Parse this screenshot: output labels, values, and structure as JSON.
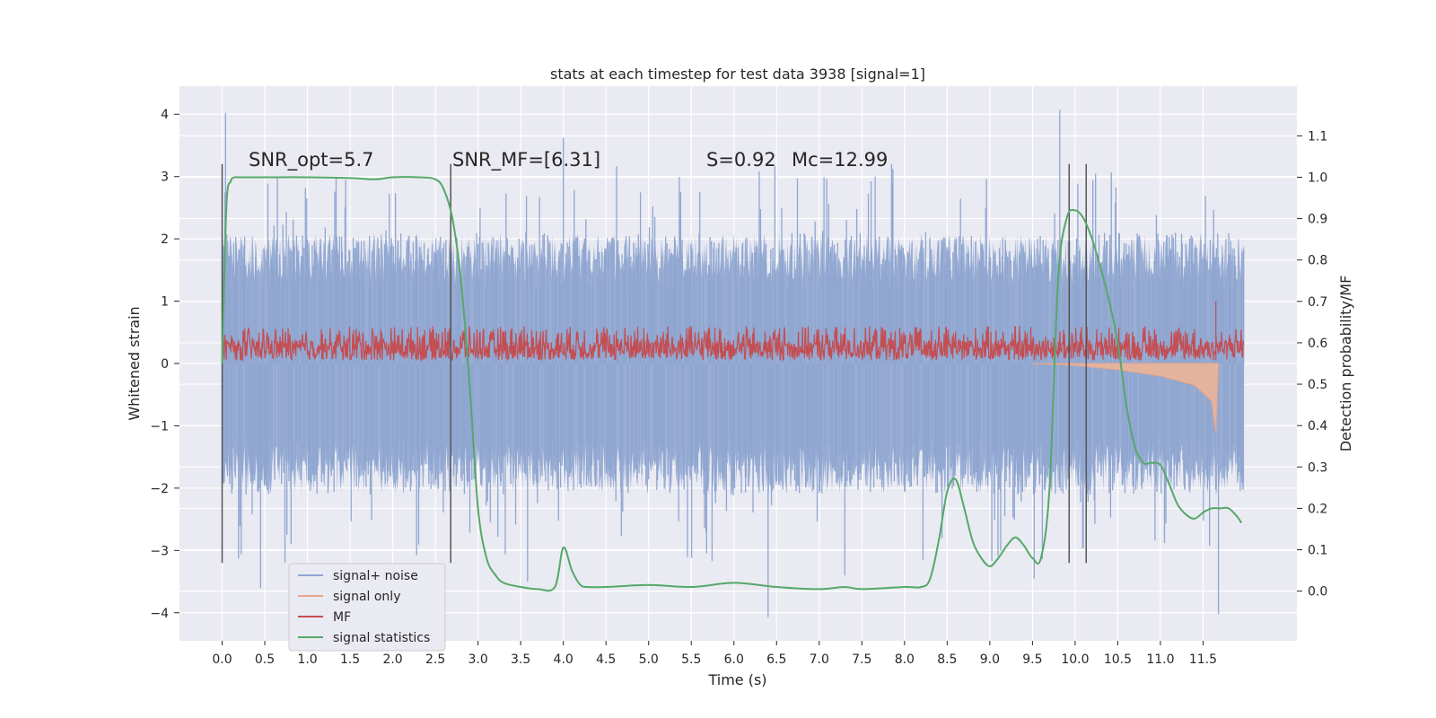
{
  "chart_data": {
    "type": "line",
    "title": "stats at each timestep for test data 3938 [signal=1]",
    "xlabel": "Time (s)",
    "ylabel": "Whitened strain",
    "y2label": "Detection probability/MF",
    "xlim": [
      -0.5,
      12.6
    ],
    "ylim": [
      -4.45,
      4.45
    ],
    "y2lim": [
      -0.12,
      1.22
    ],
    "xticks": [
      0.0,
      0.5,
      1.0,
      1.5,
      2.0,
      2.5,
      3.0,
      3.5,
      4.0,
      4.5,
      5.0,
      5.5,
      6.0,
      6.5,
      7.0,
      7.5,
      8.0,
      8.5,
      9.0,
      9.5,
      10.0,
      10.5,
      11.0,
      11.5
    ],
    "xtick_labels": [
      "0.0",
      "0.5",
      "1.0",
      "1.5",
      "2.0",
      "2.5",
      "3.0",
      "3.5",
      "4.0",
      "4.5",
      "5.0",
      "5.5",
      "6.0",
      "6.5",
      "7.0",
      "7.5",
      "8.0",
      "8.5",
      "9.0",
      "9.5",
      "10.0",
      "10.5",
      "11.0",
      "11.5"
    ],
    "yticks": [
      -4,
      -3,
      -2,
      -1,
      0,
      1,
      2,
      3,
      4
    ],
    "ytick_labels": [
      "−4",
      "−3",
      "−2",
      "−1",
      "0",
      "1",
      "2",
      "3",
      "4"
    ],
    "y2ticks": [
      0.0,
      0.1,
      0.2,
      0.3,
      0.4,
      0.5,
      0.6,
      0.7,
      0.8,
      0.9,
      1.0,
      1.1
    ],
    "y2tick_labels": [
      "0.0",
      "0.1",
      "0.2",
      "0.3",
      "0.4",
      "0.5",
      "0.6",
      "0.7",
      "0.8",
      "0.9",
      "1.0",
      "1.1"
    ],
    "grid": true,
    "legend_position": "lower-left",
    "annotations": [
      {
        "name": "snr-opt",
        "text": "SNR_opt=5.7",
        "x": 0.2,
        "y": 3.25
      },
      {
        "name": "snr-mf",
        "text": "SNR_MF=[6.31]",
        "x": 2.62,
        "y": 3.25
      },
      {
        "name": "s-value",
        "text": "S=0.92",
        "x": 5.6,
        "y": 3.25
      },
      {
        "name": "mc-value",
        "text": "Mc=12.99",
        "x": 6.6,
        "y": 3.25
      }
    ],
    "vlines": [
      {
        "x": 0.0,
        "y1": -3.2,
        "y2": 3.2
      },
      {
        "x": 2.68,
        "y1": -3.2,
        "y2": 3.2
      },
      {
        "x": 9.93,
        "y1": -3.2,
        "y2": 3.2
      },
      {
        "x": 10.13,
        "y1": -3.2,
        "y2": 3.2
      }
    ],
    "series": [
      {
        "name": "signal+ noise",
        "color": "#8fa6d1",
        "axis": "left",
        "x_range": [
          0.0,
          11.98
        ],
        "typical_band": [
          -1.3,
          1.3
        ],
        "peaks": [
          {
            "x": 0.04,
            "y": 4.02
          },
          {
            "x": 9.82,
            "y": 4.07
          },
          {
            "x": 4.0,
            "y": 3.62
          },
          {
            "x": 6.4,
            "y": -4.07
          },
          {
            "x": 11.68,
            "y": -4.02
          },
          {
            "x": 0.45,
            "y": -3.6
          },
          {
            "x": 9.52,
            "y": -3.45
          },
          {
            "x": 7.3,
            "y": -3.4
          },
          {
            "x": 3.58,
            "y": -3.5
          }
        ]
      },
      {
        "name": "signal only",
        "color": "#e8a58a",
        "axis": "left",
        "description_values": [
          {
            "x": 9.5,
            "y": 0.0
          },
          {
            "x": 10.0,
            "y": -0.03
          },
          {
            "x": 10.5,
            "y": -0.1
          },
          {
            "x": 11.0,
            "y": -0.2
          },
          {
            "x": 11.4,
            "y": -0.35
          },
          {
            "x": 11.6,
            "y": -0.6
          },
          {
            "x": 11.65,
            "y": -1.1
          },
          {
            "x": 11.68,
            "y": 0.0
          }
        ]
      },
      {
        "name": "MF",
        "color": "#c44e52",
        "axis": "left",
        "band": [
          0.05,
          0.6
        ],
        "spike": {
          "x": 11.65,
          "y": 1.0
        }
      },
      {
        "name": "signal statistics",
        "color": "#55a868",
        "axis": "right",
        "x": [
          0.0,
          0.05,
          0.1,
          0.15,
          0.2,
          0.5,
          1.0,
          1.5,
          1.8,
          2.0,
          2.3,
          2.5,
          2.6,
          2.7,
          2.8,
          2.9,
          3.0,
          3.1,
          3.2,
          3.3,
          3.5,
          3.7,
          3.9,
          4.0,
          4.1,
          4.2,
          4.3,
          4.5,
          5.0,
          5.5,
          6.0,
          6.5,
          7.0,
          7.3,
          7.5,
          8.0,
          8.2,
          8.3,
          8.4,
          8.5,
          8.6,
          8.7,
          8.8,
          8.9,
          9.0,
          9.1,
          9.2,
          9.3,
          9.4,
          9.5,
          9.6,
          9.7,
          9.8,
          9.9,
          10.0,
          10.1,
          10.2,
          10.3,
          10.4,
          10.5,
          10.6,
          10.7,
          10.8,
          10.9,
          11.0,
          11.1,
          11.2,
          11.3,
          11.4,
          11.5,
          11.6,
          11.7,
          11.8,
          11.9,
          11.95
        ],
        "y": [
          0.55,
          0.93,
          0.99,
          1.0,
          1.0,
          1.0,
          1.0,
          0.998,
          0.995,
          1.0,
          1.0,
          0.995,
          0.97,
          0.9,
          0.75,
          0.5,
          0.2,
          0.08,
          0.04,
          0.02,
          0.01,
          0.005,
          0.01,
          0.105,
          0.05,
          0.015,
          0.01,
          0.01,
          0.015,
          0.01,
          0.02,
          0.01,
          0.005,
          0.01,
          0.005,
          0.01,
          0.01,
          0.03,
          0.12,
          0.24,
          0.27,
          0.2,
          0.12,
          0.08,
          0.06,
          0.08,
          0.11,
          0.13,
          0.11,
          0.08,
          0.08,
          0.25,
          0.75,
          0.9,
          0.92,
          0.9,
          0.85,
          0.78,
          0.7,
          0.6,
          0.45,
          0.35,
          0.31,
          0.31,
          0.305,
          0.26,
          0.21,
          0.185,
          0.175,
          0.19,
          0.2,
          0.2,
          0.2,
          0.18,
          0.165
        ]
      }
    ]
  }
}
